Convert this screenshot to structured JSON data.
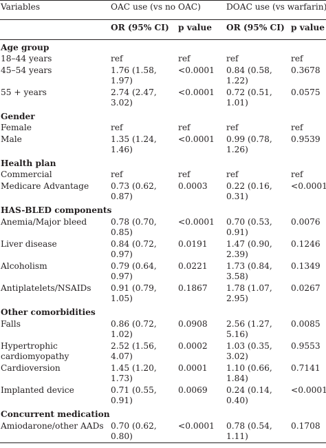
{
  "header": {
    "variables": "Variables",
    "oac_group": "OAC use (vs no OAC)",
    "doac_group": "DOAC use (vs warfarin)",
    "or_ci": "OR (95% CI)",
    "p_value": "p value"
  },
  "groups": [
    {
      "title": "Age group",
      "rows": [
        {
          "label": "18–44 years",
          "or1": "ref",
          "p1": "ref",
          "or2": "ref",
          "p2": "ref"
        },
        {
          "label": "45–54 years",
          "or1": "1.76 (1.58, 1.97)",
          "p1": "<0.0001",
          "or2": "0.84 (0.58, 1.22)",
          "p2": "0.3678"
        },
        {
          "label": "55 + years",
          "or1": "2.74 (2.47, 3.02)",
          "p1": "<0.0001",
          "or2": "0.72 (0.51, 1.01)",
          "p2": "0.0575"
        }
      ]
    },
    {
      "title": "Gender",
      "rows": [
        {
          "label": "Female",
          "or1": "ref",
          "p1": "ref",
          "or2": "ref",
          "p2": "ref"
        },
        {
          "label": "Male",
          "or1": "1.35 (1.24, 1.46)",
          "p1": "<0.0001",
          "or2": "0.99 (0.78, 1.26)",
          "p2": "0.9539"
        }
      ]
    },
    {
      "title": "Health plan",
      "rows": [
        {
          "label": "Commercial",
          "or1": "ref",
          "p1": "ref",
          "or2": "ref",
          "p2": "ref"
        },
        {
          "label": "Medicare Advantage",
          "or1": "0.73 (0.62, 0.87)",
          "p1": "0.0003",
          "or2": "0.22 (0.16, 0.31)",
          "p2": "<0.0001"
        }
      ]
    },
    {
      "title": "HAS-BLED components",
      "rows": [
        {
          "label": "Anemia/Major bleed",
          "or1": "0.78 (0.70, 0.85)",
          "p1": "<0.0001",
          "or2": "0.70 (0.53, 0.91)",
          "p2": "0.0076"
        },
        {
          "label": "Liver disease",
          "or1": "0.84 (0.72, 0.97)",
          "p1": "0.0191",
          "or2": "1.47 (0.90, 2.39)",
          "p2": "0.1246"
        },
        {
          "label": "Alcoholism",
          "or1": "0.79 (0.64, 0.97)",
          "p1": "0.0221",
          "or2": "1.73 (0.84, 3.58)",
          "p2": "0.1349"
        },
        {
          "label": "Antiplatelets/NSAIDs",
          "or1": "0.91 (0.79, 1.05)",
          "p1": "0.1867",
          "or2": "1.78 (1.07, 2.95)",
          "p2": "0.0267"
        }
      ]
    },
    {
      "title": "Other comorbidities",
      "rows": [
        {
          "label": "Falls",
          "or1": "0.86 (0.72, 1.02)",
          "p1": "0.0908",
          "or2": "2.56 (1.27, 5.16)",
          "p2": "0.0085"
        },
        {
          "label": "Hypertrophic cardiomyopathy",
          "or1": "2.52 (1.56, 4.07)",
          "p1": "0.0002",
          "or2": "1.03 (0.35, 3.02)",
          "p2": "0.9553"
        },
        {
          "label": "Cardioversion",
          "or1": "1.45 (1.20, 1.73)",
          "p1": "0.0001",
          "or2": "1.10 (0.66, 1.84)",
          "p2": "0.7141"
        },
        {
          "label": "Implanted device",
          "or1": "0.71 (0.55, 0.91)",
          "p1": "0.0069",
          "or2": "0.24 (0.14, 0.40)",
          "p2": "<0.0001"
        }
      ]
    },
    {
      "title": "Concurrent medication",
      "rows": [
        {
          "label": "Amiodarone/other AADs",
          "or1": "0.70 (0.62, 0.80)",
          "p1": "<0.0001",
          "or2": "0.78 (0.54, 1.11)",
          "p2": "0.1708"
        }
      ]
    }
  ]
}
